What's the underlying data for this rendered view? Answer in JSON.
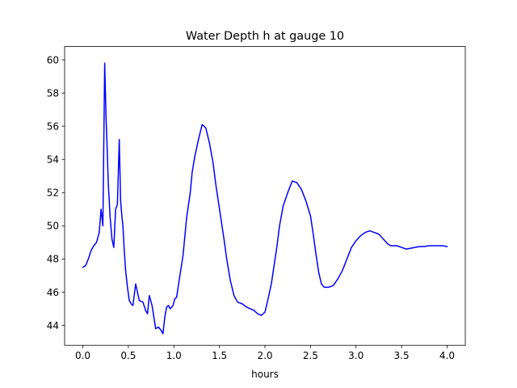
{
  "chart_data": {
    "type": "line",
    "title": "Water Depth h at gauge 10",
    "xlabel": "hours",
    "ylabel": "",
    "xlim": [
      -0.2,
      4.2
    ],
    "ylim": [
      42.8,
      60.8
    ],
    "xticks": [
      0.0,
      0.5,
      1.0,
      1.5,
      2.0,
      2.5,
      3.0,
      3.5,
      4.0
    ],
    "xtick_labels": [
      "0.0",
      "0.5",
      "1.0",
      "1.5",
      "2.0",
      "2.5",
      "3.0",
      "3.5",
      "4.0"
    ],
    "yticks": [
      44,
      46,
      48,
      50,
      52,
      54,
      56,
      58,
      60
    ],
    "ytick_labels": [
      "44",
      "46",
      "48",
      "50",
      "52",
      "54",
      "56",
      "58",
      "60"
    ],
    "grid": false,
    "legend": "none",
    "series": [
      {
        "color": "#0000ff",
        "x": [
          0.0,
          0.03,
          0.06,
          0.09,
          0.12,
          0.15,
          0.18,
          0.2,
          0.22,
          0.24,
          0.255,
          0.265,
          0.28,
          0.3,
          0.32,
          0.34,
          0.36,
          0.38,
          0.4,
          0.415,
          0.43,
          0.44,
          0.455,
          0.47,
          0.49,
          0.51,
          0.53,
          0.55,
          0.58,
          0.62,
          0.66,
          0.69,
          0.71,
          0.73,
          0.76,
          0.8,
          0.83,
          0.86,
          0.88,
          0.9,
          0.92,
          0.94,
          0.96,
          0.99,
          1.01,
          1.03,
          1.06,
          1.1,
          1.14,
          1.18,
          1.2,
          1.23,
          1.27,
          1.31,
          1.35,
          1.39,
          1.43,
          1.46,
          1.49,
          1.52,
          1.55,
          1.58,
          1.62,
          1.66,
          1.7,
          1.75,
          1.8,
          1.84,
          1.88,
          1.92,
          1.96,
          2.0,
          2.03,
          2.07,
          2.1,
          2.13,
          2.16,
          2.2,
          2.25,
          2.3,
          2.35,
          2.4,
          2.45,
          2.5,
          2.53,
          2.56,
          2.59,
          2.62,
          2.65,
          2.7,
          2.75,
          2.8,
          2.85,
          2.9,
          2.95,
          3.0,
          3.05,
          3.1,
          3.15,
          3.2,
          3.25,
          3.3,
          3.35,
          3.38,
          3.41,
          3.45,
          3.5,
          3.55,
          3.6,
          3.65,
          3.7,
          3.75,
          3.8,
          3.85,
          3.9,
          3.95,
          4.0
        ],
        "y": [
          47.5,
          47.6,
          48.0,
          48.5,
          48.8,
          49.0,
          49.6,
          51.0,
          50.0,
          59.8,
          56.5,
          55.0,
          52.5,
          50.5,
          49.2,
          48.7,
          51.0,
          51.3,
          55.2,
          51.5,
          50.5,
          50.0,
          48.5,
          47.3,
          46.3,
          45.5,
          45.3,
          45.2,
          46.5,
          45.5,
          45.4,
          44.9,
          44.7,
          45.8,
          45.2,
          43.8,
          43.9,
          43.7,
          43.5,
          44.5,
          45.1,
          45.2,
          45.0,
          45.2,
          45.6,
          45.7,
          46.8,
          48.2,
          50.5,
          52.0,
          53.2,
          54.2,
          55.2,
          56.1,
          55.9,
          55.0,
          53.8,
          52.5,
          51.4,
          50.3,
          49.2,
          48.0,
          46.7,
          45.8,
          45.4,
          45.3,
          45.1,
          45.0,
          44.9,
          44.7,
          44.6,
          44.8,
          45.5,
          46.5,
          47.6,
          48.7,
          50.0,
          51.2,
          52.0,
          52.7,
          52.6,
          52.2,
          51.5,
          50.6,
          49.5,
          48.3,
          47.2,
          46.5,
          46.3,
          46.3,
          46.4,
          46.8,
          47.3,
          48.0,
          48.7,
          49.1,
          49.4,
          49.6,
          49.7,
          49.6,
          49.5,
          49.2,
          48.9,
          48.8,
          48.8,
          48.8,
          48.7,
          48.6,
          48.65,
          48.7,
          48.75,
          48.75,
          48.8,
          48.8,
          48.8,
          48.8,
          48.75
        ]
      }
    ]
  }
}
